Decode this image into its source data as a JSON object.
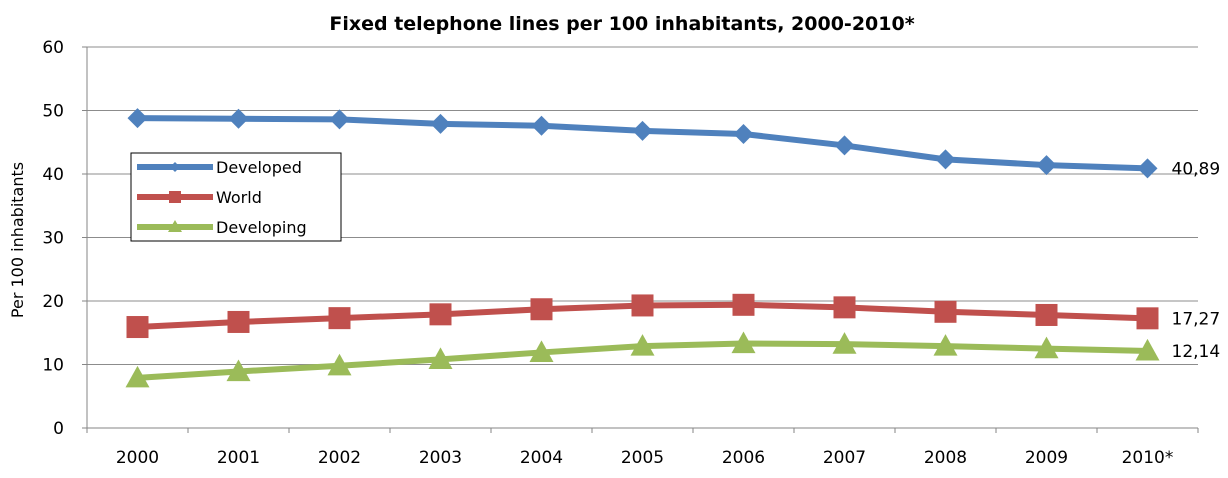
{
  "chart_data": {
    "type": "line",
    "title": "Fixed telephone lines per 100 inhabitants, 2000-2010*",
    "xlabel": "",
    "ylabel": "Per 100 inhabitants",
    "categories": [
      "2000",
      "2001",
      "2002",
      "2003",
      "2004",
      "2005",
      "2006",
      "2007",
      "2008",
      "2009",
      "2010*"
    ],
    "ylim": [
      0,
      60
    ],
    "yticks": [
      "0",
      "10",
      "20",
      "30",
      "40",
      "50",
      "60"
    ],
    "grid": true,
    "legend_position": "left",
    "series": [
      {
        "name": "Developed",
        "color": "#4F81BD",
        "marker": "diamond",
        "values": [
          48.8,
          48.7,
          48.6,
          47.9,
          47.6,
          46.8,
          46.3,
          44.5,
          42.3,
          41.4,
          40.89
        ],
        "end_label": "40,89"
      },
      {
        "name": "World",
        "color": "#C0504D",
        "marker": "square",
        "values": [
          15.9,
          16.7,
          17.3,
          17.9,
          18.7,
          19.3,
          19.4,
          19.0,
          18.3,
          17.8,
          17.27
        ],
        "end_label": "17,27"
      },
      {
        "name": "Developing",
        "color": "#9BBB59",
        "marker": "triangle",
        "values": [
          7.9,
          8.9,
          9.8,
          10.8,
          11.9,
          12.9,
          13.3,
          13.2,
          12.9,
          12.5,
          12.14
        ],
        "end_label": "12,14"
      }
    ]
  }
}
